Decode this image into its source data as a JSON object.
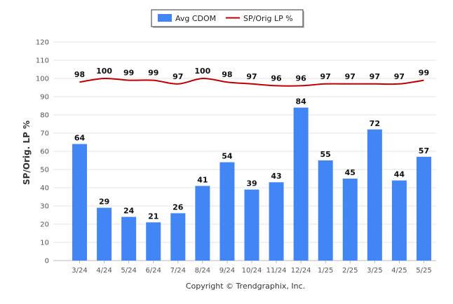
{
  "chart_data": {
    "type": "bar",
    "categories": [
      "3/24",
      "4/24",
      "5/24",
      "6/24",
      "7/24",
      "8/24",
      "9/24",
      "10/24",
      "11/24",
      "12/24",
      "1/25",
      "2/25",
      "3/25",
      "4/25",
      "5/25"
    ],
    "series": [
      {
        "name": "Avg CDOM",
        "type": "bar",
        "color": "#4285f4",
        "values": [
          64,
          29,
          24,
          21,
          26,
          41,
          54,
          39,
          43,
          84,
          55,
          45,
          72,
          44,
          57
        ]
      },
      {
        "name": "SP/Orig LP %",
        "type": "line",
        "color": "#c00000",
        "values": [
          98,
          100,
          99,
          99,
          97,
          100,
          98,
          97,
          96,
          96,
          97,
          97,
          97,
          97,
          99
        ]
      }
    ],
    "ylabel": "SP/Orig. LP %",
    "ylim": [
      0,
      120
    ],
    "yticks": [
      0,
      10,
      20,
      30,
      40,
      50,
      60,
      70,
      80,
      90,
      100,
      110,
      120
    ],
    "grid": true,
    "legend_position": "top-center"
  },
  "footer": {
    "copyright": "Copyright © Trendgraphix, Inc."
  }
}
